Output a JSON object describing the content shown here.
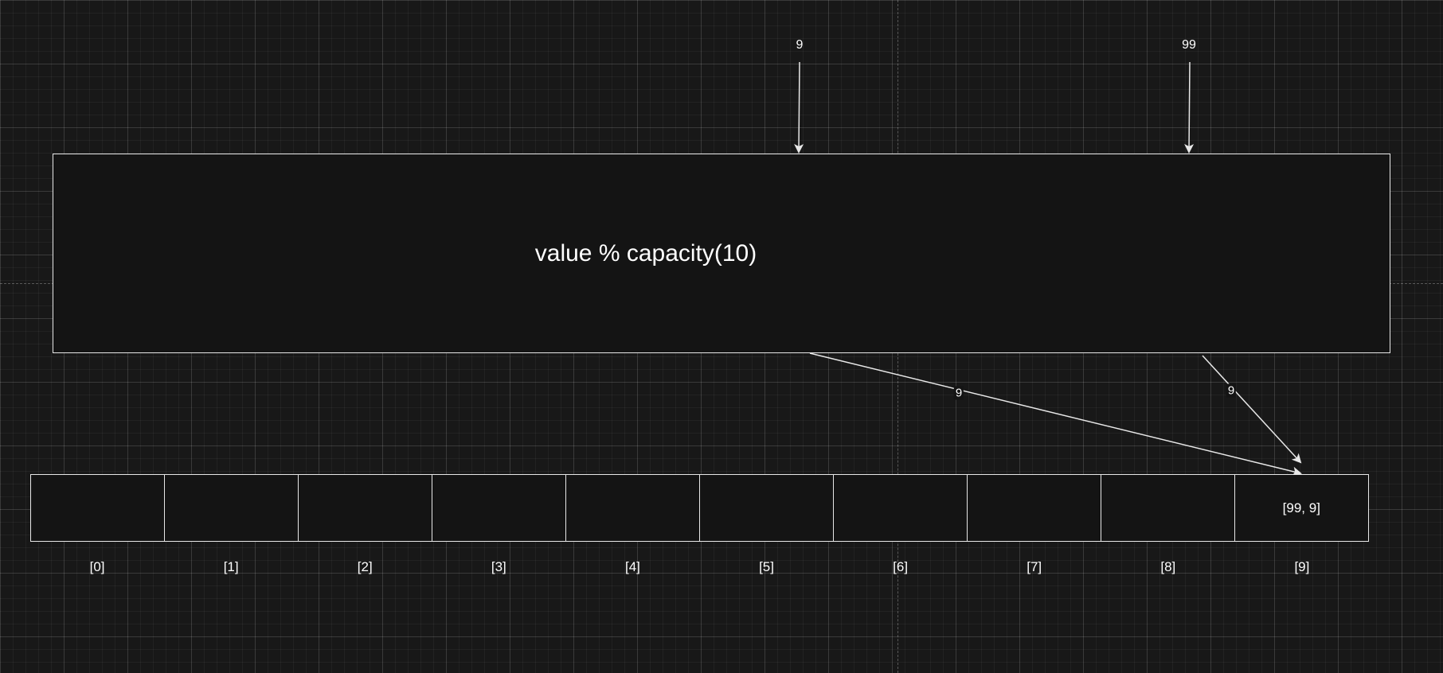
{
  "inputs": [
    {
      "value": "9"
    },
    {
      "value": "99"
    }
  ],
  "hash_function": {
    "label": "value % capacity(10)"
  },
  "array": {
    "cells": [
      {
        "index": "[0]",
        "content": ""
      },
      {
        "index": "[1]",
        "content": ""
      },
      {
        "index": "[2]",
        "content": ""
      },
      {
        "index": "[3]",
        "content": ""
      },
      {
        "index": "[4]",
        "content": ""
      },
      {
        "index": "[5]",
        "content": ""
      },
      {
        "index": "[6]",
        "content": ""
      },
      {
        "index": "[7]",
        "content": ""
      },
      {
        "index": "[8]",
        "content": ""
      },
      {
        "index": "[9]",
        "content": "[99, 9]"
      }
    ]
  },
  "edges": [
    {
      "label": "9"
    },
    {
      "label": "9"
    }
  ],
  "colors": {
    "background": "#181818",
    "stroke": "#e8e8e8",
    "text": "#ffffff"
  }
}
